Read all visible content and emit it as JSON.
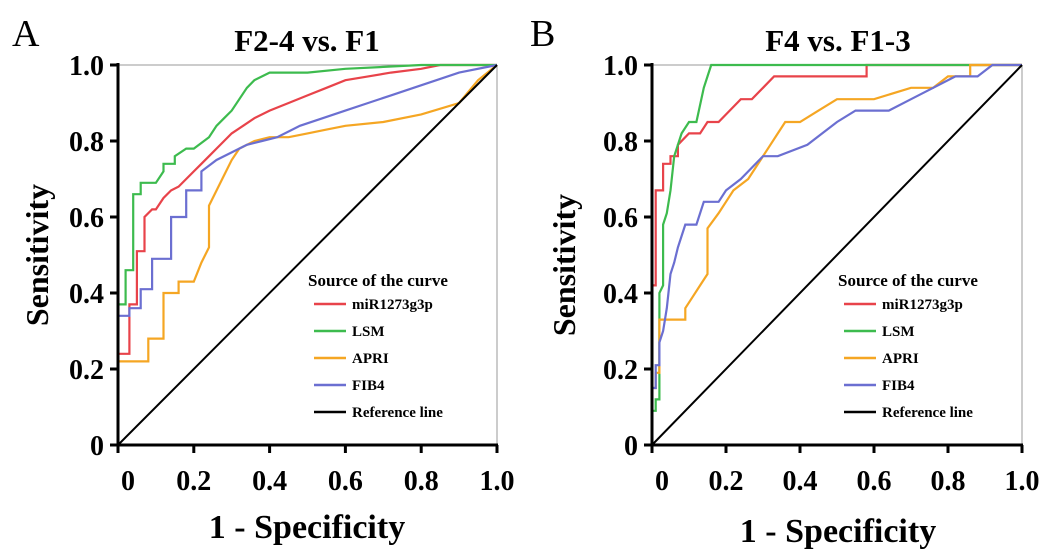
{
  "colors": {
    "miR1273g3p": "#e8434a",
    "LSM": "#3dbb4e",
    "APRI": "#f5a623",
    "FIB4": "#6b6fd1",
    "Reference line": "#000000"
  },
  "chart_data": [
    {
      "panel": "A",
      "type": "line",
      "title": "F2-4 vs. F1",
      "xlabel": "1 - Specificity",
      "ylabel": "Sensitivity",
      "xlim": [
        0,
        1
      ],
      "ylim": [
        0,
        1
      ],
      "xticks": [
        "0",
        "0.2",
        "0.4",
        "0.6",
        "0.8",
        "1.0"
      ],
      "yticks": [
        "0",
        "0.2",
        "0.4",
        "0.6",
        "0.8",
        "1.0"
      ],
      "legend_title": "Source of the curve",
      "legend_position": "bottom-right",
      "legend": [
        "miR1273g3p",
        "LSM",
        "APRI",
        "FIB4",
        "Reference line"
      ],
      "series": [
        {
          "name": "miR1273g3p",
          "x": [
            0,
            0,
            0.03,
            0.03,
            0.05,
            0.05,
            0.07,
            0.07,
            0.09,
            0.1,
            0.12,
            0.14,
            0.16,
            0.18,
            0.2,
            0.22,
            0.24,
            0.26,
            0.28,
            0.3,
            0.33,
            0.36,
            0.4,
            0.45,
            0.5,
            0.55,
            0.6,
            0.66,
            0.72,
            0.8,
            0.85,
            0.95,
            1.0
          ],
          "y": [
            0,
            0.24,
            0.24,
            0.37,
            0.37,
            0.51,
            0.51,
            0.6,
            0.62,
            0.62,
            0.65,
            0.67,
            0.68,
            0.7,
            0.72,
            0.74,
            0.76,
            0.78,
            0.8,
            0.82,
            0.84,
            0.86,
            0.88,
            0.9,
            0.92,
            0.94,
            0.96,
            0.97,
            0.98,
            0.99,
            1.0,
            1.0,
            1.0
          ]
        },
        {
          "name": "LSM",
          "x": [
            0,
            0,
            0.02,
            0.02,
            0.04,
            0.04,
            0.06,
            0.06,
            0.1,
            0.12,
            0.12,
            0.15,
            0.15,
            0.18,
            0.2,
            0.24,
            0.26,
            0.28,
            0.3,
            0.32,
            0.34,
            0.36,
            0.4,
            0.5,
            0.6,
            0.8,
            1.0
          ],
          "y": [
            0,
            0.37,
            0.37,
            0.46,
            0.46,
            0.66,
            0.66,
            0.69,
            0.69,
            0.72,
            0.74,
            0.74,
            0.76,
            0.78,
            0.78,
            0.81,
            0.84,
            0.86,
            0.88,
            0.91,
            0.94,
            0.96,
            0.98,
            0.98,
            0.99,
            1.0,
            1.0
          ]
        },
        {
          "name": "APRI",
          "x": [
            0,
            0,
            0.08,
            0.08,
            0.12,
            0.12,
            0.16,
            0.16,
            0.2,
            0.22,
            0.24,
            0.24,
            0.28,
            0.3,
            0.32,
            0.36,
            0.4,
            0.45,
            0.5,
            0.55,
            0.6,
            0.7,
            0.8,
            0.9,
            0.95,
            1.0
          ],
          "y": [
            0,
            0.22,
            0.22,
            0.28,
            0.28,
            0.4,
            0.4,
            0.43,
            0.43,
            0.48,
            0.52,
            0.63,
            0.71,
            0.75,
            0.78,
            0.8,
            0.81,
            0.81,
            0.82,
            0.83,
            0.84,
            0.85,
            0.87,
            0.9,
            0.96,
            1.0
          ]
        },
        {
          "name": "FIB4",
          "x": [
            0,
            0,
            0.03,
            0.03,
            0.06,
            0.06,
            0.09,
            0.09,
            0.14,
            0.14,
            0.18,
            0.18,
            0.22,
            0.22,
            0.26,
            0.3,
            0.34,
            0.38,
            0.42,
            0.48,
            0.54,
            0.6,
            0.66,
            0.72,
            0.78,
            0.84,
            0.9,
            1.0
          ],
          "y": [
            0,
            0.34,
            0.34,
            0.36,
            0.36,
            0.41,
            0.41,
            0.49,
            0.49,
            0.6,
            0.6,
            0.67,
            0.67,
            0.72,
            0.75,
            0.77,
            0.79,
            0.8,
            0.81,
            0.84,
            0.86,
            0.88,
            0.9,
            0.92,
            0.94,
            0.96,
            0.98,
            1.0
          ]
        },
        {
          "name": "Reference line",
          "x": [
            0,
            1
          ],
          "y": [
            0,
            1
          ]
        }
      ]
    },
    {
      "panel": "B",
      "type": "line",
      "title": "F4 vs. F1-3",
      "xlabel": "1 - Specificity",
      "ylabel": "Sensitivity",
      "xlim": [
        0,
        1
      ],
      "ylim": [
        0,
        1
      ],
      "xticks": [
        "0",
        "0.2",
        "0.4",
        "0.6",
        "0.8",
        "1.0"
      ],
      "yticks": [
        "0",
        "0.2",
        "0.4",
        "0.6",
        "0.8",
        "1.0"
      ],
      "legend_title": "Source of the curve",
      "legend_position": "bottom-right",
      "legend": [
        "miR1273g3p",
        "LSM",
        "APRI",
        "FIB4",
        "Reference line"
      ],
      "series": [
        {
          "name": "miR1273g3p",
          "x": [
            0,
            0,
            0.01,
            0.01,
            0.03,
            0.03,
            0.05,
            0.05,
            0.07,
            0.07,
            0.1,
            0.13,
            0.15,
            0.18,
            0.21,
            0.24,
            0.27,
            0.3,
            0.33,
            0.36,
            0.4,
            0.5,
            0.58,
            0.58,
            1.0
          ],
          "y": [
            0,
            0.42,
            0.42,
            0.67,
            0.67,
            0.74,
            0.74,
            0.76,
            0.76,
            0.79,
            0.82,
            0.82,
            0.85,
            0.85,
            0.88,
            0.91,
            0.91,
            0.94,
            0.97,
            0.97,
            0.97,
            0.97,
            0.97,
            1.0,
            1.0
          ]
        },
        {
          "name": "LSM",
          "x": [
            0,
            0,
            0.01,
            0.01,
            0.02,
            0.02,
            0.03,
            0.03,
            0.04,
            0.05,
            0.06,
            0.07,
            0.08,
            0.1,
            0.12,
            0.14,
            0.15,
            0.16,
            0.3,
            0.6,
            1.0
          ],
          "y": [
            0,
            0.09,
            0.09,
            0.12,
            0.12,
            0.4,
            0.42,
            0.58,
            0.61,
            0.67,
            0.76,
            0.79,
            0.82,
            0.85,
            0.85,
            0.94,
            0.97,
            1.0,
            1.0,
            1.0,
            1.0
          ]
        },
        {
          "name": "APRI",
          "x": [
            0,
            0,
            0.01,
            0.01,
            0.02,
            0.02,
            0.09,
            0.09,
            0.11,
            0.13,
            0.15,
            0.15,
            0.18,
            0.2,
            0.22,
            0.26,
            0.28,
            0.3,
            0.32,
            0.34,
            0.36,
            0.4,
            0.45,
            0.5,
            0.6,
            0.7,
            0.76,
            0.8,
            0.86,
            0.86,
            1.0
          ],
          "y": [
            0,
            0.15,
            0.15,
            0.19,
            0.19,
            0.33,
            0.33,
            0.36,
            0.39,
            0.42,
            0.45,
            0.57,
            0.61,
            0.64,
            0.67,
            0.7,
            0.73,
            0.76,
            0.79,
            0.82,
            0.85,
            0.85,
            0.88,
            0.91,
            0.91,
            0.94,
            0.94,
            0.97,
            0.97,
            1.0,
            1.0
          ]
        },
        {
          "name": "FIB4",
          "x": [
            0,
            0,
            0.01,
            0.01,
            0.02,
            0.02,
            0.03,
            0.04,
            0.05,
            0.06,
            0.07,
            0.08,
            0.09,
            0.12,
            0.14,
            0.18,
            0.2,
            0.24,
            0.27,
            0.3,
            0.34,
            0.42,
            0.46,
            0.5,
            0.55,
            0.64,
            0.7,
            0.76,
            0.82,
            0.88,
            0.92,
            1.0
          ],
          "y": [
            0,
            0.15,
            0.15,
            0.21,
            0.21,
            0.27,
            0.3,
            0.36,
            0.45,
            0.48,
            0.52,
            0.55,
            0.58,
            0.58,
            0.64,
            0.64,
            0.67,
            0.7,
            0.73,
            0.76,
            0.76,
            0.79,
            0.82,
            0.85,
            0.88,
            0.88,
            0.91,
            0.94,
            0.97,
            0.97,
            1.0,
            1.0
          ]
        },
        {
          "name": "Reference line",
          "x": [
            0,
            1
          ],
          "y": [
            0,
            1
          ]
        }
      ]
    }
  ]
}
